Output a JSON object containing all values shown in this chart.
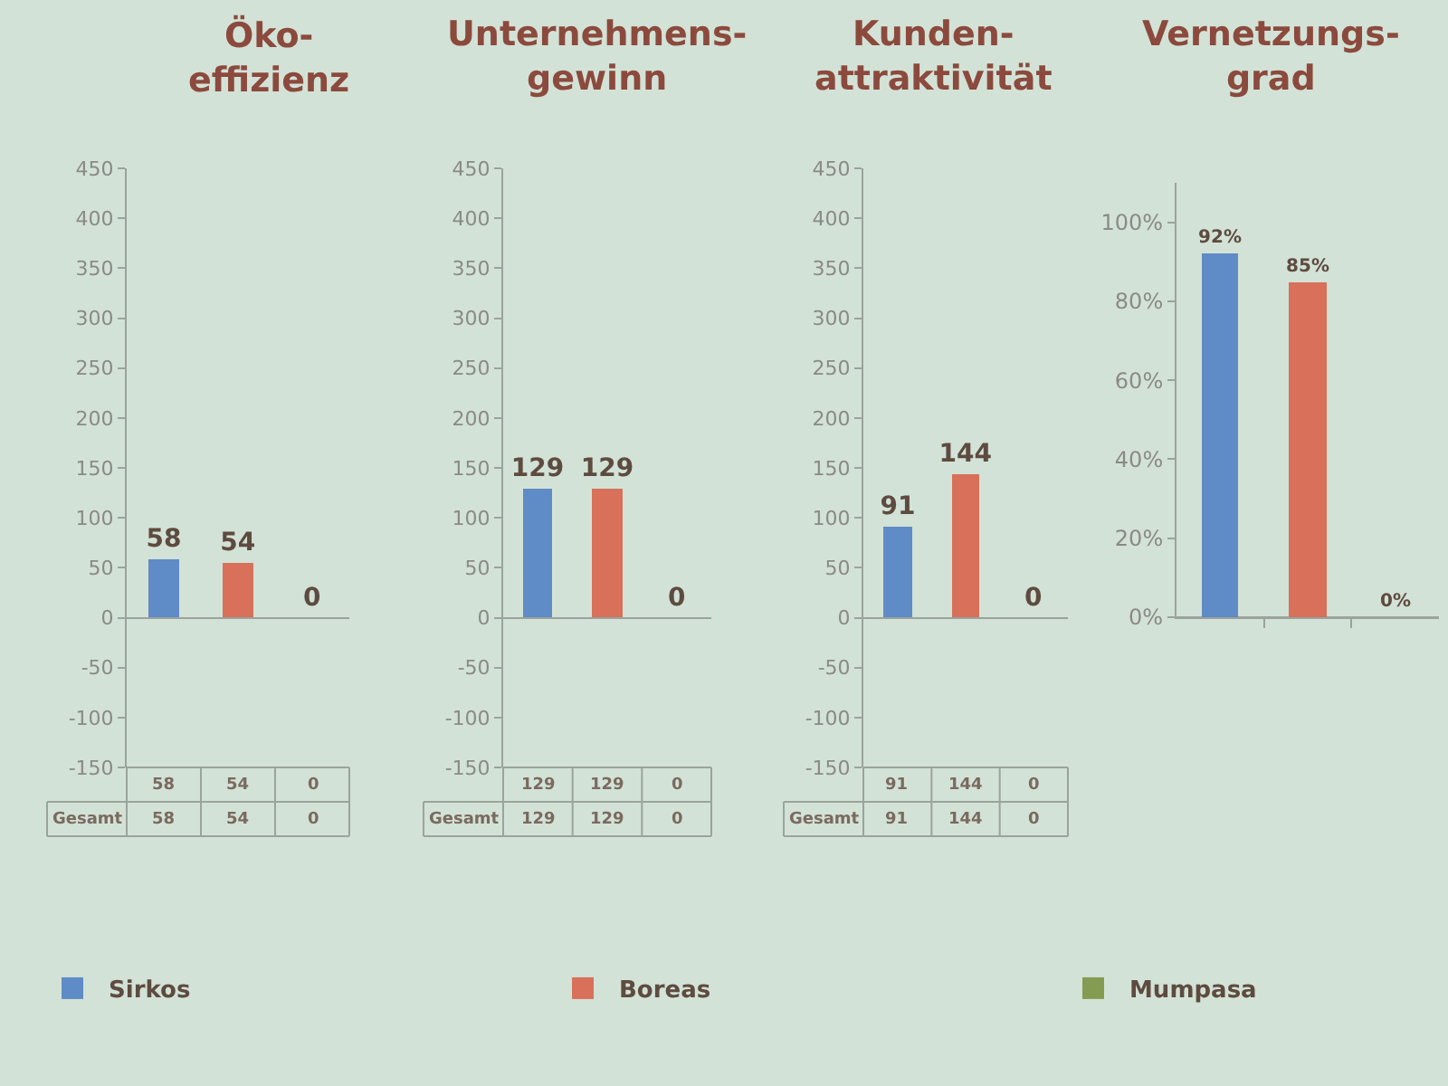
{
  "chart_data": [
    {
      "type": "bar",
      "title": "Öko-\neffizienz",
      "categories": [
        null,
        null,
        null
      ],
      "series": [
        {
          "name": "Sirkos",
          "color": "#5f8bc6",
          "values": [
            58,
            null,
            null
          ]
        },
        {
          "name": "Boreas",
          "color": "#d8705a",
          "values": [
            null,
            54,
            null
          ]
        },
        {
          "name": "Mumpasa",
          "color": "#849c52",
          "values": [
            null,
            null,
            0
          ]
        }
      ],
      "ylim": [
        -150,
        450
      ],
      "yticks": [
        -150,
        -100,
        -50,
        0,
        50,
        100,
        150,
        200,
        250,
        300,
        350,
        400,
        450
      ],
      "data_labels": true,
      "annotations": [
        "58",
        "54",
        "0",
        "Gesamt",
        "58",
        "54",
        "0"
      ],
      "legend": "bottom"
    },
    {
      "type": "bar",
      "title": "Unternehmens-\ngewinn",
      "categories": [
        null,
        null,
        null
      ],
      "series": [
        {
          "color": "#5f8bc6",
          "values": [
            129,
            null,
            null
          ]
        },
        {
          "color": "#d8705a",
          "values": [
            null,
            129,
            null
          ]
        },
        {
          "color": "#849c52",
          "values": [
            null,
            null,
            0
          ]
        }
      ],
      "ylim": [
        -150,
        450
      ],
      "yticks": [
        -150,
        -100,
        -50,
        0,
        50,
        100,
        150,
        200,
        250,
        300,
        350,
        400,
        450
      ],
      "data_labels": true,
      "annotations": [
        "129",
        "129",
        "0",
        "Gesamt",
        "129",
        "129",
        "0"
      ]
    },
    {
      "type": "bar",
      "title": "Kunden-\nattraktivität",
      "categories": [
        null,
        null,
        null
      ],
      "series": [
        {
          "color": "#5f8bc6",
          "values": [
            91,
            null,
            null
          ]
        },
        {
          "color": "#d8705a",
          "values": [
            null,
            144,
            null
          ]
        },
        {
          "color": "#849c52",
          "values": [
            null,
            null,
            0
          ]
        }
      ],
      "ylim": [
        -150,
        450
      ],
      "yticks": [
        -150,
        -100,
        -50,
        0,
        50,
        100,
        150,
        200,
        250,
        300,
        350,
        400,
        450
      ],
      "data_labels": true,
      "annotations": [
        "91",
        "144",
        "0",
        "Gesamt",
        "91",
        "144",
        "0"
      ]
    },
    {
      "type": "bar",
      "title": "Vernetzungs-\ngrad",
      "categories": [
        null,
        null,
        null
      ],
      "series": [
        {
          "color": "#5f8bc6",
          "values": [
            92,
            null,
            null
          ],
          "value_labels": [
            "92%",
            null,
            null
          ]
        },
        {
          "color": "#d8705a",
          "values": [
            null,
            85,
            null
          ],
          "value_labels": [
            null,
            "85%",
            null
          ]
        },
        {
          "color": "#849c52",
          "values": [
            null,
            null,
            0
          ],
          "value_labels": [
            null,
            null,
            "0%"
          ]
        }
      ],
      "ylim": [
        0,
        110
      ],
      "yticks": [
        {
          "value": 0,
          "label": "0%"
        },
        {
          "value": 20,
          "label": "20%"
        },
        {
          "value": 40,
          "label": "40%"
        },
        {
          "value": 60,
          "label": "60%"
        },
        {
          "value": 80,
          "label": "80%"
        },
        {
          "value": 100,
          "label": "100%"
        }
      ]
    }
  ]
}
